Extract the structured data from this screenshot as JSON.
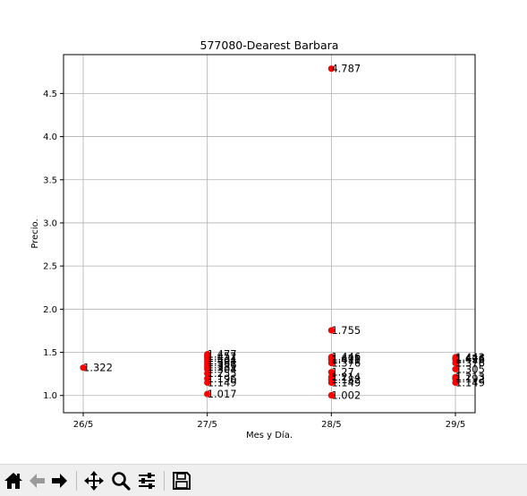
{
  "chart_data": {
    "type": "scatter",
    "title": "577080-Dearest Barbara",
    "xlabel": "Mes y Día.",
    "ylabel": "Precio.",
    "categories": [
      "26/5",
      "27/5",
      "28/5",
      "29/5"
    ],
    "ylim": [
      0.8,
      4.95
    ],
    "yticks": [
      "1.0",
      "1.5",
      "2.0",
      "2.5",
      "3.0",
      "3.5",
      "4.0",
      "4.5"
    ],
    "grid": true,
    "marker_color": "#ff0000",
    "series": [
      {
        "points": [
          {
            "x": "26/5",
            "y": 1.322,
            "label": "1.322"
          },
          {
            "x": "27/5",
            "y": 1.477,
            "label": "1.477"
          },
          {
            "x": "27/5",
            "y": 1.452,
            "label": "1.452"
          },
          {
            "x": "27/5",
            "y": 1.431,
            "label": "1.431"
          },
          {
            "x": "27/5",
            "y": 1.404,
            "label": "1.404"
          },
          {
            "x": "27/5",
            "y": 1.381,
            "label": "1.381"
          },
          {
            "x": "27/5",
            "y": 1.356,
            "label": "1.356"
          },
          {
            "x": "27/5",
            "y": 1.331,
            "label": "1.331"
          },
          {
            "x": "27/5",
            "y": 1.304,
            "label": "1.304"
          },
          {
            "x": "27/5",
            "y": 1.255,
            "label": "1.255"
          },
          {
            "x": "27/5",
            "y": 1.196,
            "label": "1.196"
          },
          {
            "x": "27/5",
            "y": 1.149,
            "label": "1.149"
          },
          {
            "x": "27/5",
            "y": 1.017,
            "label": "1.017"
          },
          {
            "x": "28/5",
            "y": 4.787,
            "label": "4.787"
          },
          {
            "x": "28/5",
            "y": 1.755,
            "label": "1.755"
          },
          {
            "x": "28/5",
            "y": 1.446,
            "label": "1.446"
          },
          {
            "x": "28/5",
            "y": 1.428,
            "label": "1.428"
          },
          {
            "x": "28/5",
            "y": 1.411,
            "label": "1.411"
          },
          {
            "x": "28/5",
            "y": 1.376,
            "label": "1.376"
          },
          {
            "x": "28/5",
            "y": 1.27,
            "label": "1.27"
          },
          {
            "x": "28/5",
            "y": 1.214,
            "label": "1.214"
          },
          {
            "x": "28/5",
            "y": 1.182,
            "label": "1.182"
          },
          {
            "x": "28/5",
            "y": 1.149,
            "label": "1.149"
          },
          {
            "x": "28/5",
            "y": 1.002,
            "label": "1.002"
          },
          {
            "x": "29/5",
            "y": 1.443,
            "label": "1.443"
          },
          {
            "x": "29/5",
            "y": 1.426,
            "label": "1.426"
          },
          {
            "x": "29/5",
            "y": 1.416,
            "label": "1.416"
          },
          {
            "x": "29/5",
            "y": 1.376,
            "label": "1.376"
          },
          {
            "x": "29/5",
            "y": 1.305,
            "label": "1.305"
          },
          {
            "x": "29/5",
            "y": 1.213,
            "label": "1.213"
          },
          {
            "x": "29/5",
            "y": 1.192,
            "label": "1.192"
          },
          {
            "x": "29/5",
            "y": 1.149,
            "label": "1.149"
          }
        ]
      }
    ]
  },
  "toolbar": {
    "buttons": [
      {
        "name": "home-icon"
      },
      {
        "name": "back-arrow-icon"
      },
      {
        "name": "forward-arrow-icon"
      },
      {
        "name": "pan-move-icon"
      },
      {
        "name": "zoom-magnifier-icon"
      },
      {
        "name": "configure-subplots-icon"
      },
      {
        "name": "save-floppy-icon"
      }
    ]
  }
}
